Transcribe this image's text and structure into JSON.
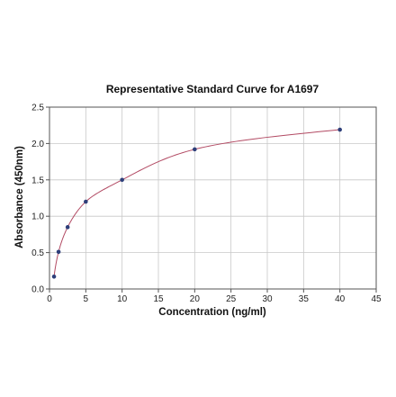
{
  "chart_data": {
    "type": "scatter",
    "title": "Representative Standard Curve for A1697",
    "xlabel": "Concentration (ng/ml)",
    "ylabel": "Absorbance (450nm)",
    "xlim": [
      0,
      45
    ],
    "ylim": [
      0,
      2.5
    ],
    "x_ticks": [
      "0",
      "5",
      "10",
      "15",
      "20",
      "25",
      "30",
      "35",
      "40",
      "45"
    ],
    "y_ticks": [
      "0.0",
      "0.5",
      "1.0",
      "1.5",
      "2.0",
      "2.5"
    ],
    "grid": true,
    "legend": "none",
    "series": [
      {
        "points": [
          {
            "x": 0.625,
            "y": 0.17
          },
          {
            "x": 1.25,
            "y": 0.51
          },
          {
            "x": 2.5,
            "y": 0.85
          },
          {
            "x": 5,
            "y": 1.2
          },
          {
            "x": 10,
            "y": 1.5
          },
          {
            "x": 20,
            "y": 1.92
          },
          {
            "x": 40,
            "y": 2.19
          }
        ],
        "fit": "4-parameter logistic curve"
      }
    ],
    "colors": {
      "points": "#2e3f7a",
      "curve": "#b24a63",
      "grid": "#c8c8c8",
      "axis": "#555555"
    }
  }
}
